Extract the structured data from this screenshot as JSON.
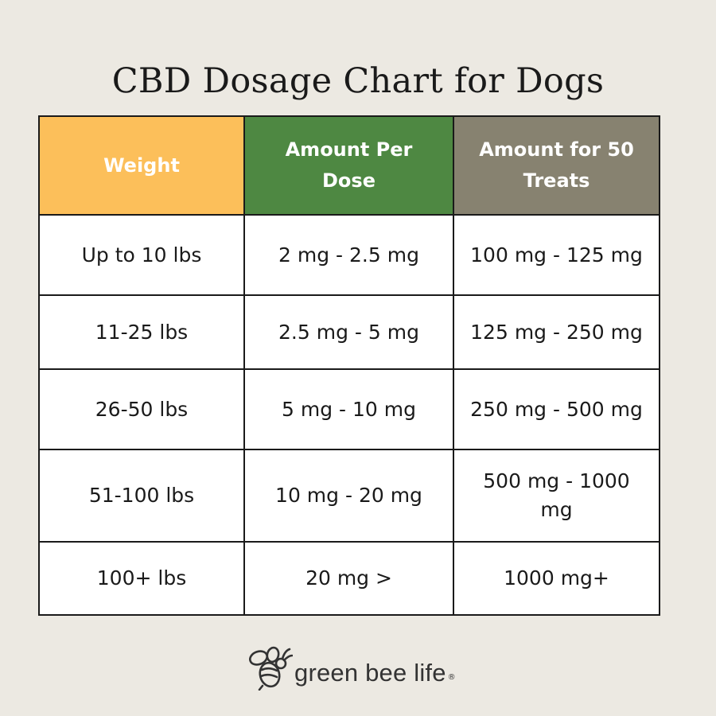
{
  "title": "CBD Dosage Chart for Dogs",
  "table": {
    "headers": [
      "Weight",
      "Amount Per Dose",
      "Amount for 50 Treats"
    ],
    "rows": [
      [
        "Up to 10 lbs",
        "2 mg - 2.5 mg",
        "100 mg - 125 mg"
      ],
      [
        "11-25 lbs",
        "2.5 mg - 5 mg",
        "125 mg - 250 mg"
      ],
      [
        "26-50 lbs",
        "5 mg - 10 mg",
        "250 mg - 500 mg"
      ],
      [
        "51-100 lbs",
        "10 mg - 20 mg",
        "500 mg - 1000 mg"
      ],
      [
        "100+ lbs",
        "20 mg >",
        "1000 mg+"
      ]
    ]
  },
  "colors": {
    "background": "#ece9e2",
    "weight_header": "#fcbf5a",
    "dose_header": "#4e8842",
    "treats_header": "#878270"
  },
  "logo": {
    "icon": "bee-icon",
    "text": "green bee life",
    "registered": "®"
  }
}
